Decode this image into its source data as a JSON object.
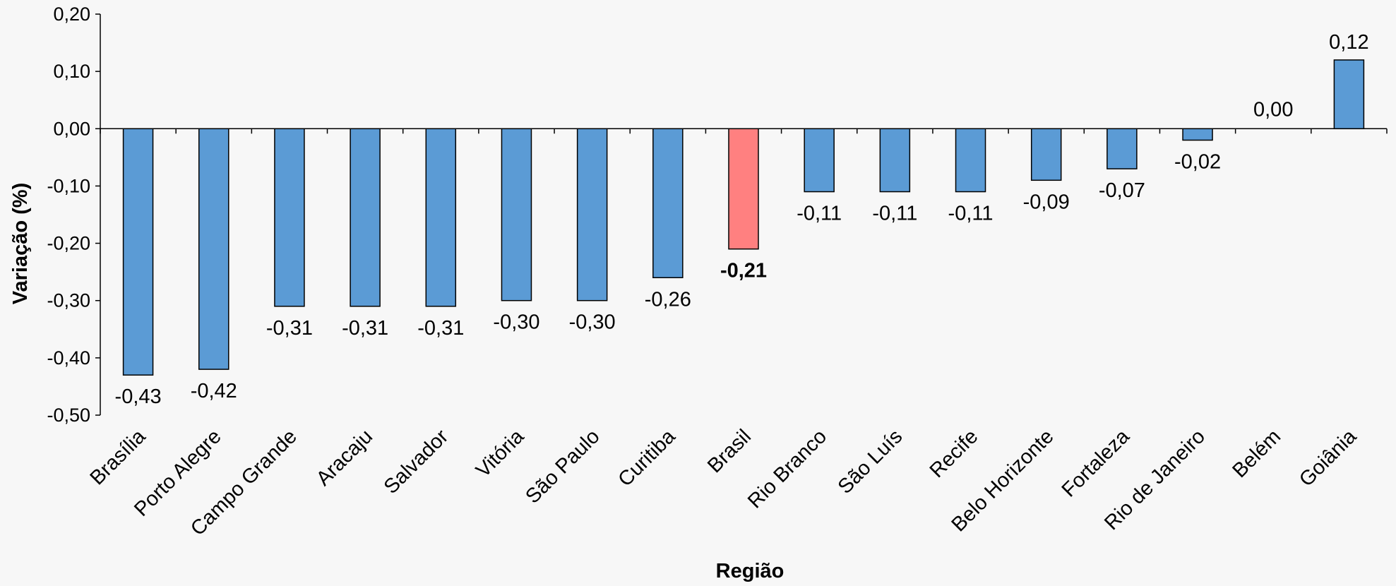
{
  "chart_data": {
    "type": "bar",
    "xlabel": "Região",
    "ylabel": "Variação (%)",
    "ylim": [
      -0.5,
      0.2
    ],
    "yticks": [
      0.2,
      0.1,
      0.0,
      -0.1,
      -0.2,
      -0.3,
      -0.4,
      -0.5
    ],
    "ytick_labels": [
      "0,20",
      "0,10",
      "0,00",
      "-0,10",
      "-0,20",
      "-0,30",
      "-0,40",
      "-0,50"
    ],
    "categories": [
      "Brasília",
      "Porto Alegre",
      "Campo Grande",
      "Aracaju",
      "Salvador",
      "Vitória",
      "São Paulo",
      "Curitiba",
      "Brasil",
      "Rio Branco",
      "São Luís",
      "Recife",
      "Belo Horizonte",
      "Fortaleza",
      "Rio de Janeiro",
      "Belém",
      "Goiânia"
    ],
    "values": [
      -0.43,
      -0.42,
      -0.31,
      -0.31,
      -0.31,
      -0.3,
      -0.3,
      -0.26,
      -0.21,
      -0.11,
      -0.11,
      -0.11,
      -0.09,
      -0.07,
      -0.02,
      0.0,
      0.12
    ],
    "value_labels": [
      "-0,43",
      "-0,42",
      "-0,31",
      "-0,31",
      "-0,31",
      "-0,30",
      "-0,30",
      "-0,26",
      "-0,21",
      "-0,11",
      "-0,11",
      "-0,11",
      "-0,09",
      "-0,07",
      "-0,02",
      "0,00",
      "0,12"
    ],
    "highlight_category": "Brasil",
    "colors": {
      "bar": "#5b9bd5",
      "highlight": "#ff8080",
      "background": "#f7f7f7"
    },
    "grid": false,
    "legend": "none"
  }
}
